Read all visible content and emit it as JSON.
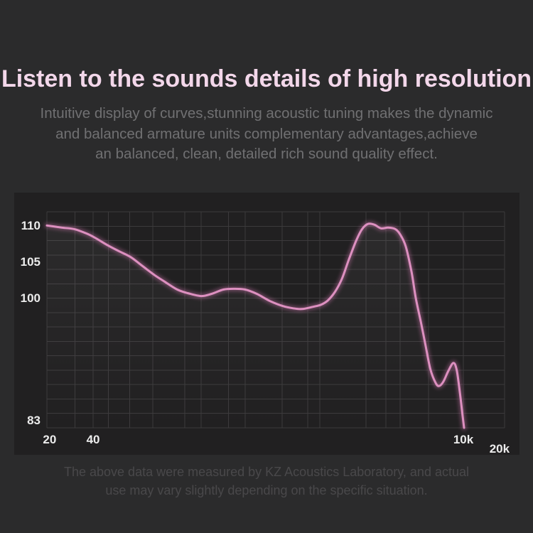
{
  "page": {
    "bg": "#2b2b2c"
  },
  "header": {
    "title": "Listen to the sounds details of high resolution",
    "title_color": "#f3d7ea",
    "subtitle_color": "#707072",
    "subtitle_lines": [
      "Intuitive display of curves,stunning acoustic tuning makes the dynamic",
      "and balanced armature units complementary advantages,achieve",
      "an balanced, clean, detailed rich sound quality effect."
    ]
  },
  "chart_data": {
    "type": "line",
    "title": "",
    "xlabel": "",
    "ylabel": "",
    "x_scale": "log",
    "x_unit": "Hz",
    "y_unit": "dB",
    "x_range_hz": [
      20,
      18600
    ],
    "y_range_db": [
      82,
      112
    ],
    "grid": "on",
    "grid_color": "#3c3a3c",
    "panel_bg": "#212021",
    "y_gridline_step_db": 2,
    "x_gridlines_pct": [
      0,
      6.1,
      10.1,
      13.4,
      18.1,
      23.1,
      30.1,
      33.7,
      39.7,
      43.3,
      51.4,
      57,
      59.6,
      69.7,
      74.1,
      77.2,
      83.4,
      91,
      100
    ],
    "y_ticks": [
      {
        "label": "110",
        "db": 110
      },
      {
        "label": "105",
        "db": 105
      },
      {
        "label": "100",
        "db": 100
      },
      {
        "label": "83",
        "db": 83
      }
    ],
    "x_ticks": [
      {
        "label": "20",
        "pct": 0.6,
        "dy": 0
      },
      {
        "label": "40",
        "pct": 10.1,
        "dy": 0
      },
      {
        "label": "10k",
        "pct": 91.0,
        "dy": 0
      },
      {
        "label": "20k",
        "pct": 98.9,
        "dy": 13
      }
    ],
    "series": [
      {
        "name": "frequency-response",
        "color": "#dd90c0",
        "glow_color": "#c873a8",
        "points_hz_db": [
          [
            20,
            110.1
          ],
          [
            25,
            109.8
          ],
          [
            30,
            109.6
          ],
          [
            36,
            109.0
          ],
          [
            41,
            108.4
          ],
          [
            50,
            107.3
          ],
          [
            59,
            106.5
          ],
          [
            70,
            105.7
          ],
          [
            83,
            104.5
          ],
          [
            100,
            103.2
          ],
          [
            116,
            102.3
          ],
          [
            140,
            101.2
          ],
          [
            164,
            100.7
          ],
          [
            200,
            100.3
          ],
          [
            234,
            100.6
          ],
          [
            280,
            101.2
          ],
          [
            328,
            101.3
          ],
          [
            385,
            101.2
          ],
          [
            460,
            100.6
          ],
          [
            560,
            99.6
          ],
          [
            680,
            98.9
          ],
          [
            790,
            98.6
          ],
          [
            900,
            98.5
          ],
          [
            1060,
            98.8
          ],
          [
            1200,
            99.1
          ],
          [
            1330,
            99.7
          ],
          [
            1480,
            100.9
          ],
          [
            1640,
            102.7
          ],
          [
            1820,
            105.4
          ],
          [
            2020,
            107.9
          ],
          [
            2200,
            109.5
          ],
          [
            2410,
            110.3
          ],
          [
            2660,
            110.2
          ],
          [
            2940,
            109.7
          ],
          [
            3270,
            109.8
          ],
          [
            3630,
            109.6
          ],
          [
            3900,
            108.9
          ],
          [
            4250,
            107.2
          ],
          [
            4640,
            103.6
          ],
          [
            4940,
            100.0
          ],
          [
            5330,
            96.7
          ],
          [
            5720,
            93.4
          ],
          [
            6150,
            90.1
          ],
          [
            6620,
            88.3
          ],
          [
            6970,
            87.8
          ],
          [
            7450,
            88.4
          ],
          [
            8030,
            89.9
          ],
          [
            8670,
            91.0
          ],
          [
            9120,
            89.9
          ],
          [
            9580,
            86.6
          ],
          [
            9870,
            84.2
          ],
          [
            10160,
            82.0
          ]
        ]
      }
    ]
  },
  "footer": {
    "color": "#49484a",
    "lines": [
      "The above data were measured by KZ Acoustics Laboratory, and actual",
      "use may vary slightly depending on the specific situation."
    ]
  }
}
